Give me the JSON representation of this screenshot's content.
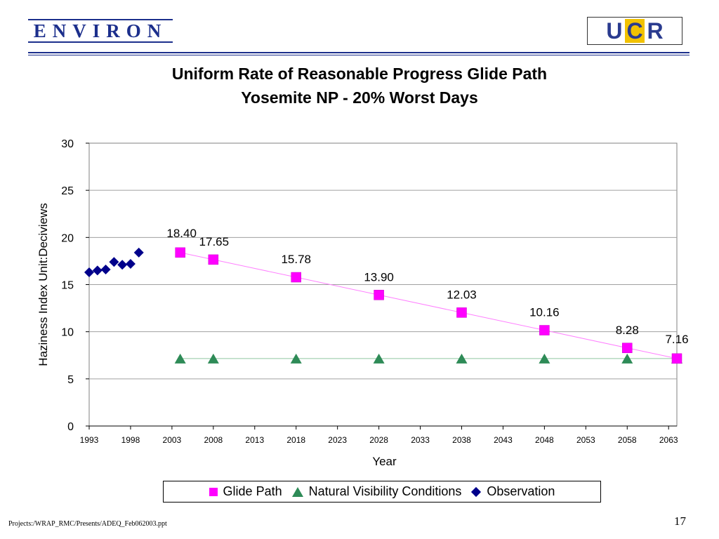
{
  "header": {
    "left_logo_text": "ENVIRON",
    "right_logo_text": "UCR"
  },
  "footer": {
    "path": "Projects:/WRAP_RMC/Presents/ADEQ_Feb062003.ppt",
    "page_number": "17"
  },
  "colors": {
    "brand_blue": "#1c2f8c",
    "glide_path": "#ff00ff",
    "natural": "#2e8b57",
    "observation": "#00008b"
  },
  "chart_data": {
    "type": "line",
    "title": "Uniform Rate of Reasonable Progress Glide Path",
    "subtitle": "Yosemite NP - 20% Worst Days",
    "xlabel": "Year",
    "ylabel": "Haziness Index Unit:Deciviews",
    "xlim": [
      1993,
      2064
    ],
    "ylim": [
      0,
      30
    ],
    "x_ticks": [
      1993,
      1998,
      2003,
      2008,
      2013,
      2018,
      2023,
      2028,
      2033,
      2038,
      2043,
      2048,
      2053,
      2058,
      2063
    ],
    "y_ticks": [
      0,
      5,
      10,
      15,
      20,
      25,
      30
    ],
    "grid": "horizontal",
    "legend_position": "bottom",
    "series": [
      {
        "name": "Glide Path",
        "marker": "square",
        "x": [
          2004,
          2008,
          2018,
          2028,
          2038,
          2048,
          2058,
          2064
        ],
        "y": [
          18.4,
          17.65,
          15.78,
          13.9,
          12.03,
          10.16,
          8.28,
          7.16
        ],
        "labels": [
          "18.40",
          "17.65",
          "15.78",
          "13.90",
          "12.03",
          "10.16",
          "8.28",
          "7.16"
        ]
      },
      {
        "name": "Natural Visibility Conditions",
        "marker": "triangle",
        "x": [
          2004,
          2008,
          2018,
          2028,
          2038,
          2048,
          2058,
          2064
        ],
        "y": [
          7.16,
          7.16,
          7.16,
          7.16,
          7.16,
          7.16,
          7.16,
          7.16
        ]
      },
      {
        "name": "Observation",
        "marker": "diamond",
        "x": [
          1993,
          1994,
          1995,
          1996,
          1997,
          1998,
          1999
        ],
        "y": [
          16.3,
          16.5,
          16.6,
          17.4,
          17.1,
          17.2,
          18.4
        ]
      }
    ]
  }
}
